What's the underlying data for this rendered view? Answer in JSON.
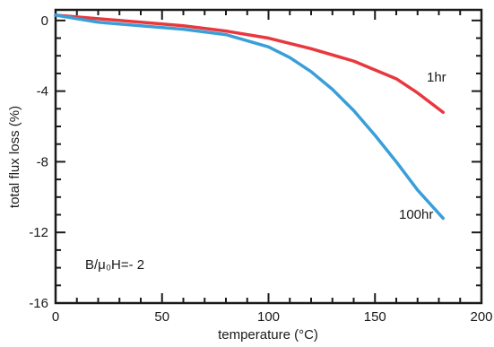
{
  "chart_data": {
    "type": "line",
    "title": "",
    "xlabel": "temperature (°C)",
    "ylabel": "total flux loss (%)",
    "xlim": [
      0,
      200
    ],
    "ylim": [
      -16,
      0.6
    ],
    "x_ticks": [
      0,
      50,
      100,
      150,
      200
    ],
    "x_tick_labels": [
      "0",
      "50",
      "100",
      "150",
      "200"
    ],
    "y_ticks": [
      0,
      -4,
      -8,
      -12,
      -16
    ],
    "y_tick_labels": [
      "0",
      "-4",
      "-8",
      "-12",
      "-16"
    ],
    "grid": false,
    "annotation": "B/μ₀H=- 2",
    "series": [
      {
        "name": "1hr",
        "color": "#e8383d",
        "x": [
          0,
          20,
          40,
          60,
          80,
          100,
          120,
          140,
          160,
          170,
          182
        ],
        "y": [
          0.3,
          0.1,
          -0.1,
          -0.3,
          -0.6,
          -1.0,
          -1.6,
          -2.3,
          -3.3,
          -4.1,
          -5.2
        ]
      },
      {
        "name": "100hr",
        "color": "#3a9fd8",
        "x": [
          0,
          20,
          40,
          60,
          80,
          100,
          110,
          120,
          130,
          140,
          150,
          160,
          170,
          182
        ],
        "y": [
          0.3,
          -0.1,
          -0.3,
          -0.5,
          -0.8,
          -1.5,
          -2.1,
          -2.9,
          -3.9,
          -5.1,
          -6.5,
          -8.0,
          -9.6,
          -11.2
        ]
      }
    ]
  }
}
